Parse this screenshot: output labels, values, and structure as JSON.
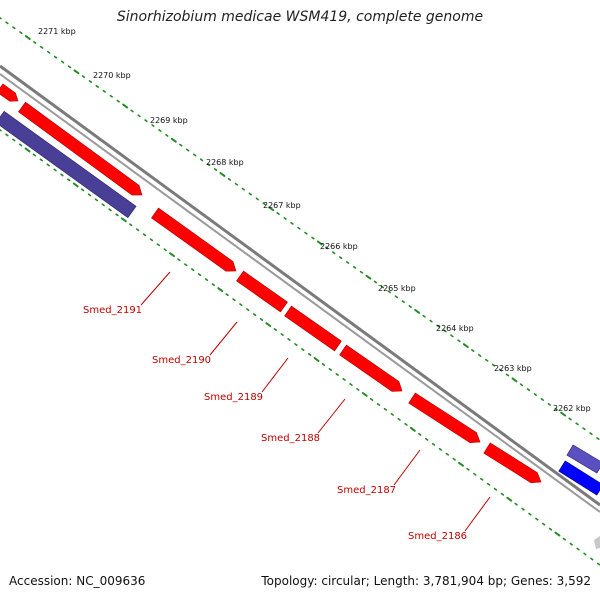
{
  "title": "Sinorhizobium medicae WSM419, complete genome",
  "footer": {
    "accession": "Accession: NC_009636",
    "summary": "Topology: circular; Length: 3,781,904 bp; Genes: 3,592"
  },
  "colors": {
    "forward_gene": "#ff0000",
    "reverse_gene": "#4a3f96",
    "reverse_gene_bright": "#0000ff",
    "backbone": "#888888",
    "ruler_dots": "#228b22",
    "gene_label": "#c00000"
  },
  "ruler_ticks": [
    {
      "label": "2271 kbp"
    },
    {
      "label": "2270 kbp"
    },
    {
      "label": "2269 kbp"
    },
    {
      "label": "2268 kbp"
    },
    {
      "label": "2267 kbp"
    },
    {
      "label": "2266 kbp"
    },
    {
      "label": "2265 kbp"
    },
    {
      "label": "2264 kbp"
    },
    {
      "label": "2263 kbp"
    },
    {
      "label": "2262 kbp"
    }
  ],
  "genes": [
    {
      "label": "Smed_2191"
    },
    {
      "label": "Smed_2190"
    },
    {
      "label": "Smed_2189"
    },
    {
      "label": "Smed_2188"
    },
    {
      "label": "Smed_2187"
    },
    {
      "label": "Smed_2186"
    }
  ]
}
